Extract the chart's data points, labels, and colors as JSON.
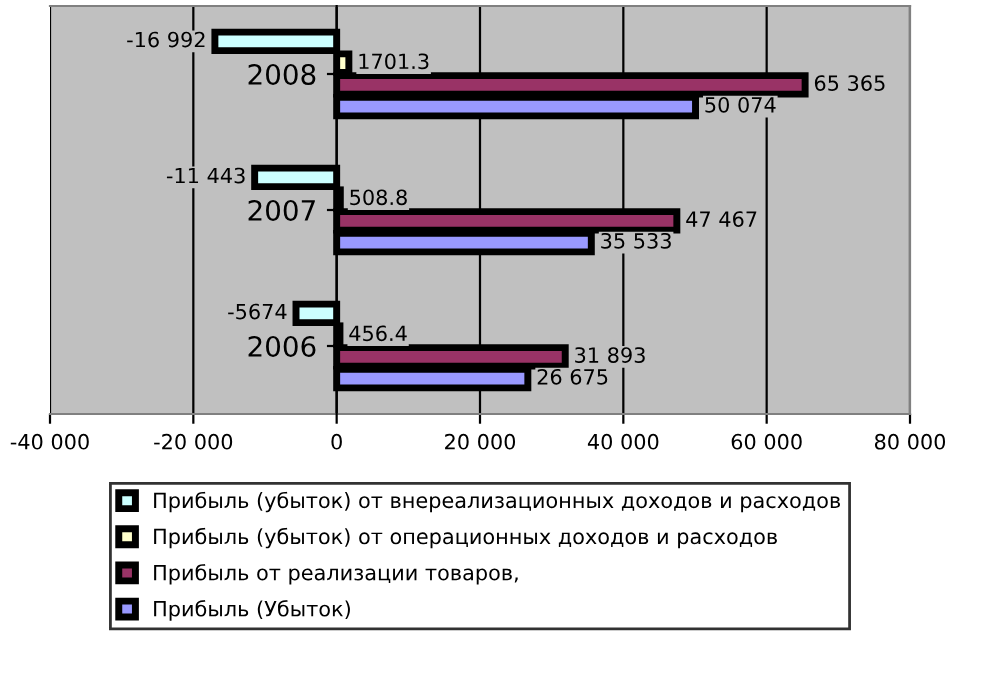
{
  "chart_data": {
    "type": "bar",
    "orientation": "horizontal",
    "categories": [
      "2008",
      "2007",
      "2006"
    ],
    "series": [
      {
        "name": "Прибыль (убыток) от внереализационных доходов и расходов",
        "color": "#ccffff",
        "values": [
          -16992,
          -11443,
          -5674
        ],
        "value_labels": [
          "-16 992",
          "-11 443",
          "-5674"
        ]
      },
      {
        "name": "Прибыль (убыток) от операционных доходов и расходов",
        "color": "#ffffcc",
        "values": [
          1701.3,
          508.8,
          456.4
        ],
        "value_labels": [
          "1701.3",
          "508.8",
          "456.4"
        ]
      },
      {
        "name": "Прибыль от реализации товаров,",
        "color": "#993366",
        "values": [
          65365,
          47467,
          31893
        ],
        "value_labels": [
          "65 365",
          "47 467",
          "31 893"
        ]
      },
      {
        "name": "Прибыль (Убыток)",
        "color": "#9999ff",
        "values": [
          50074,
          35533,
          26675
        ],
        "value_labels": [
          "50 074",
          "35 533",
          "26 675"
        ]
      }
    ],
    "xlim": [
      -40000,
      80000
    ],
    "xticks": [
      {
        "value": -40000,
        "label": "-40 000"
      },
      {
        "value": -20000,
        "label": "-20 000"
      },
      0,
      {
        "value": 20000,
        "label": "20 000"
      },
      {
        "value": 40000,
        "label": "40 000"
      },
      {
        "value": 60000,
        "label": "60 000"
      },
      {
        "value": 80000,
        "label": "80 000"
      }
    ],
    "grid": "x",
    "legend": "bottom"
  }
}
